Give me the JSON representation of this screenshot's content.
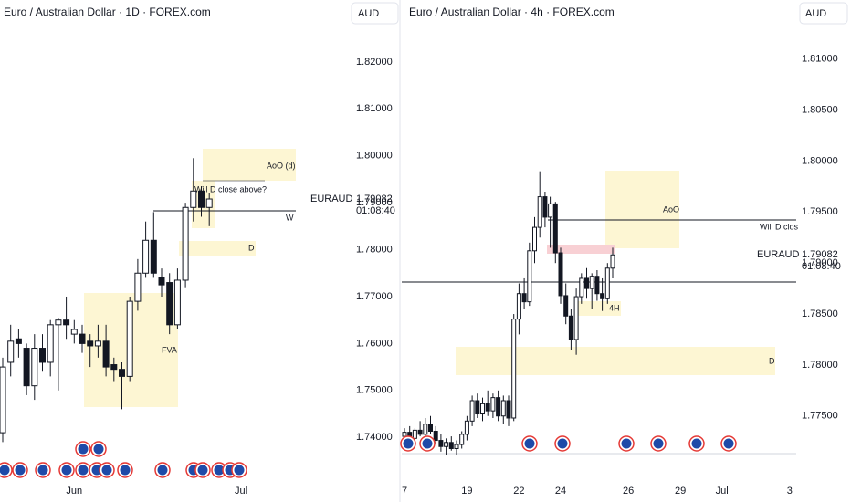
{
  "chart_data": [
    {
      "type": "candlestick",
      "title": "Euro / Australian Dollar · 1D · FOREX.com",
      "currency": "AUD",
      "symbol": "EURAUD",
      "last_price": 1.79082,
      "countdown": "01:08:40",
      "annotations": [
        "AoO (d)",
        "Will D close above?",
        "W",
        "D",
        "FVA"
      ],
      "categories": [
        null,
        null,
        null,
        null,
        null,
        null,
        null,
        null,
        null,
        "Jun",
        null,
        null,
        null,
        null,
        null,
        null,
        null,
        null,
        null,
        null,
        null,
        null,
        null,
        null,
        null,
        null,
        null,
        null,
        null,
        null,
        "Jul",
        null,
        null,
        null,
        null,
        null,
        null,
        null
      ],
      "open": [
        1.741,
        1.756,
        1.761,
        1.759,
        1.751,
        1.759,
        1.756,
        1.764,
        1.765,
        1.762,
        1.762,
        1.7605,
        1.7595,
        1.7605,
        1.7555,
        1.7545,
        1.753,
        1.769,
        1.775,
        1.782,
        1.774,
        1.773,
        1.764,
        1.7735,
        1.789,
        1.7925,
        1.789,
        null,
        null,
        null,
        null,
        null,
        null,
        null,
        null,
        null,
        null,
        null
      ],
      "high": [
        1.757,
        1.764,
        1.763,
        1.76,
        1.762,
        1.762,
        1.765,
        1.7655,
        1.77,
        1.765,
        1.764,
        1.762,
        1.764,
        1.764,
        1.757,
        1.756,
        1.77,
        1.778,
        1.786,
        1.788,
        1.776,
        1.775,
        1.776,
        1.79,
        1.7995,
        1.7935,
        1.792,
        null,
        null,
        null,
        null,
        null,
        null,
        null,
        null,
        null,
        null,
        null
      ],
      "low": [
        1.739,
        1.753,
        1.757,
        1.749,
        1.748,
        1.754,
        1.753,
        1.75,
        1.761,
        1.76,
        1.758,
        1.755,
        1.757,
        1.753,
        1.752,
        1.746,
        1.752,
        1.767,
        1.774,
        1.774,
        1.77,
        1.762,
        1.763,
        1.772,
        1.786,
        1.787,
        1.785,
        null,
        null,
        null,
        null,
        null,
        null,
        null,
        null,
        null,
        null,
        null
      ],
      "close": [
        1.755,
        1.7605,
        1.76,
        1.751,
        1.759,
        1.756,
        1.764,
        1.765,
        1.764,
        1.763,
        1.76,
        1.7595,
        1.7605,
        1.755,
        1.7545,
        1.753,
        1.769,
        1.775,
        1.782,
        1.775,
        1.7725,
        1.764,
        1.7735,
        1.789,
        1.7925,
        1.789,
        1.7908,
        null,
        null,
        null,
        null,
        null,
        null,
        null,
        null,
        null,
        null,
        null
      ],
      "ylim": [
        1.7311,
        1.8332
      ],
      "yticks": [
        {
          "value": 1.74,
          "label": "1.74000"
        },
        {
          "value": 1.75,
          "label": "1.75000"
        },
        {
          "value": 1.76,
          "label": "1.76000"
        },
        {
          "value": 1.77,
          "label": "1.77000"
        },
        {
          "value": 1.78,
          "label": "1.78000"
        },
        {
          "value": 1.79,
          "label": "1.79000"
        },
        {
          "value": 1.8,
          "label": "1.80000"
        },
        {
          "value": 1.81,
          "label": "1.81000"
        },
        {
          "value": 1.82,
          "label": "1.82000"
        }
      ]
    },
    {
      "type": "candlestick",
      "title": "Euro / Australian Dollar · 4h · FOREX.com",
      "currency": "AUD",
      "symbol": "EURAUD",
      "last_price": 1.79082,
      "countdown": "01:08:40",
      "annotations": [
        "AoO",
        "Will D clos",
        "D",
        "4H"
      ],
      "categories": [
        "7",
        null,
        null,
        null,
        null,
        null,
        null,
        null,
        null,
        null,
        null,
        null,
        "19",
        null,
        null,
        null,
        null,
        null,
        null,
        null,
        null,
        null,
        "22",
        null,
        null,
        null,
        null,
        null,
        null,
        null,
        "24",
        null,
        null,
        null,
        null,
        null,
        null,
        null,
        null,
        null,
        null,
        null,
        null,
        "26",
        null,
        null,
        null,
        null,
        null,
        null,
        null,
        null,
        null,
        "29",
        null,
        null,
        null,
        null,
        null,
        null,
        null,
        "Jul",
        null,
        null,
        null,
        null,
        null,
        null,
        null,
        null,
        null,
        null,
        null,
        null,
        "3"
      ],
      "open": [
        1.773,
        1.7734,
        1.7728,
        1.7736,
        1.7732,
        1.7742,
        1.7735,
        1.7726,
        1.772,
        1.7724,
        1.7718,
        1.7722,
        1.7732,
        1.7745,
        1.7765,
        1.7752,
        1.7762,
        1.7755,
        1.7768,
        1.775,
        1.7765,
        1.7748,
        1.7845,
        1.787,
        1.7862,
        1.7912,
        1.7935,
        1.7965,
        1.7945,
        1.7958,
        1.791,
        1.7868,
        1.7848,
        1.7825,
        1.7867,
        1.7885,
        1.7875,
        1.7887,
        1.787,
        1.7865,
        1.7895,
        null,
        null,
        null,
        null,
        null,
        null,
        null,
        null,
        null,
        null,
        null,
        null,
        null,
        null,
        null,
        null,
        null,
        null,
        null,
        null,
        null,
        null,
        null,
        null,
        null,
        null,
        null,
        null,
        null,
        null,
        null,
        null,
        null,
        null
      ],
      "high": [
        1.7738,
        1.774,
        1.7738,
        1.7745,
        1.7748,
        1.775,
        1.774,
        1.7732,
        1.7728,
        1.773,
        1.7726,
        1.7735,
        1.775,
        1.777,
        1.7772,
        1.7768,
        1.7775,
        1.7772,
        1.7775,
        1.777,
        1.777,
        1.785,
        1.788,
        1.7885,
        1.792,
        1.7945,
        1.799,
        1.797,
        1.7965,
        1.796,
        1.7915,
        1.788,
        1.7855,
        1.7875,
        1.789,
        1.7895,
        1.789,
        1.7893,
        1.7885,
        1.79,
        1.7915,
        null,
        null,
        null,
        null,
        null,
        null,
        null,
        null,
        null,
        null,
        null,
        null,
        null,
        null,
        null,
        null,
        null,
        null,
        null,
        null,
        null,
        null,
        null,
        null,
        null,
        null,
        null,
        null,
        null,
        null,
        null,
        null,
        null,
        null
      ],
      "low": [
        1.772,
        1.7725,
        1.7722,
        1.773,
        1.7728,
        1.7732,
        1.7722,
        1.7715,
        1.7712,
        1.7716,
        1.7712,
        1.7718,
        1.7726,
        1.774,
        1.7748,
        1.7745,
        1.775,
        1.7748,
        1.7745,
        1.7742,
        1.774,
        1.7745,
        1.783,
        1.7855,
        1.7858,
        1.79,
        1.7925,
        1.7935,
        1.7915,
        1.79,
        1.786,
        1.784,
        1.7815,
        1.781,
        1.786,
        1.7865,
        1.7855,
        1.7863,
        1.7853,
        1.786,
        1.7885,
        null,
        null,
        null,
        null,
        null,
        null,
        null,
        null,
        null,
        null,
        null,
        null,
        null,
        null,
        null,
        null,
        null,
        null,
        null,
        null,
        null,
        null,
        null,
        null,
        null,
        null,
        null,
        null,
        null,
        null,
        null,
        null,
        null,
        null
      ],
      "close": [
        1.7734,
        1.7728,
        1.7736,
        1.7732,
        1.7742,
        1.7735,
        1.7726,
        1.772,
        1.7724,
        1.7718,
        1.7722,
        1.7732,
        1.7745,
        1.7765,
        1.7752,
        1.7762,
        1.7755,
        1.7768,
        1.775,
        1.7765,
        1.7748,
        1.7845,
        1.787,
        1.7862,
        1.7912,
        1.7935,
        1.7965,
        1.7945,
        1.7958,
        1.791,
        1.7868,
        1.7848,
        1.7825,
        1.7867,
        1.7885,
        1.7875,
        1.7887,
        1.787,
        1.7865,
        1.7895,
        1.7908,
        null,
        null,
        null,
        null,
        null,
        null,
        null,
        null,
        null,
        null,
        null,
        null,
        null,
        null,
        null,
        null,
        null,
        null,
        null,
        null,
        null,
        null,
        null,
        null,
        null,
        null,
        null,
        null,
        null,
        null,
        null,
        null,
        null,
        null
      ],
      "ylim": [
        1.7688,
        1.8158
      ],
      "yticks": [
        {
          "value": 1.775,
          "label": "1.77500"
        },
        {
          "value": 1.78,
          "label": "1.78000"
        },
        {
          "value": 1.785,
          "label": "1.78500"
        },
        {
          "value": 1.79,
          "label": "1.79000"
        },
        {
          "value": 1.795,
          "label": "1.79500"
        },
        {
          "value": 1.8,
          "label": "1.80000"
        },
        {
          "value": 1.805,
          "label": "1.80500"
        },
        {
          "value": 1.81,
          "label": "1.81000"
        }
      ]
    }
  ]
}
